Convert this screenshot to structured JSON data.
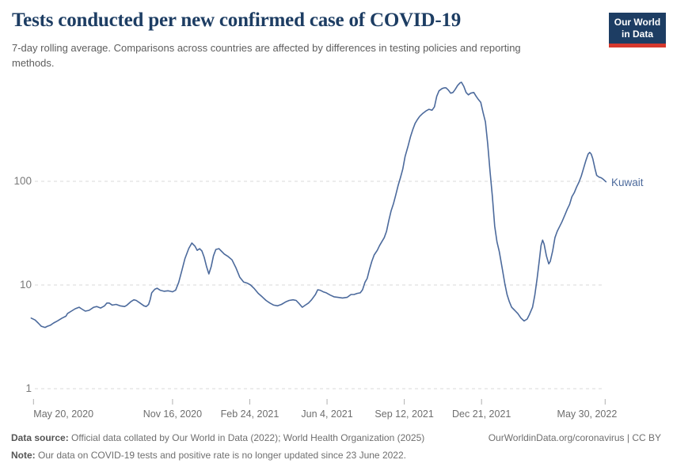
{
  "header": {
    "title": "Tests conducted per new confirmed case of COVID-19",
    "subtitle": "7-day rolling average. Comparisons across countries are affected by differences in testing policies and reporting methods.",
    "logo": {
      "line1": "Our World",
      "line2": "in Data"
    }
  },
  "colors": {
    "title_navy": "#1d3d63",
    "logo_navy": "#1d3d63",
    "logo_red": "#d5382d",
    "series_blue": "#4C6A9C",
    "grid_gray": "#d8d8d8",
    "tick_gray": "#b0b0b0"
  },
  "chart_data": {
    "type": "line",
    "title": "Tests conducted per new confirmed case of COVID-19",
    "y_scale": "log",
    "grid": "horizontal-dashed",
    "y_ticks": [
      {
        "label": "1",
        "value": 1
      },
      {
        "label": "10",
        "value": 10
      },
      {
        "label": "100",
        "value": 100
      }
    ],
    "x_ticks": [
      {
        "label": "May 20, 2020",
        "day": 0,
        "align": "left"
      },
      {
        "label": "Nov 16, 2020",
        "day": 180,
        "align": "center"
      },
      {
        "label": "Feb 24, 2021",
        "day": 280,
        "align": "center"
      },
      {
        "label": "Jun 4, 2021",
        "day": 380,
        "align": "center"
      },
      {
        "label": "Sep 12, 2021",
        "day": 480,
        "align": "center"
      },
      {
        "label": "Dec 21, 2021",
        "day": 580,
        "align": "center"
      },
      {
        "label": "May 30, 2022",
        "day": 740,
        "align": "right"
      }
    ],
    "x_domain_days": [
      -3,
      741
    ],
    "x_day0_date": "May 20, 2020",
    "y_domain": [
      1,
      1000
    ],
    "series": [
      {
        "name": "Kuwait",
        "color": "#4C6A9C",
        "points": [
          [
            -3,
            4.8
          ],
          [
            2,
            4.6
          ],
          [
            6,
            4.3
          ],
          [
            10,
            4.0
          ],
          [
            15,
            3.9
          ],
          [
            18,
            4.0
          ],
          [
            22,
            4.1
          ],
          [
            26,
            4.3
          ],
          [
            31,
            4.5
          ],
          [
            37,
            4.8
          ],
          [
            42,
            5.0
          ],
          [
            44,
            5.3
          ],
          [
            49,
            5.6
          ],
          [
            54,
            5.9
          ],
          [
            59,
            6.1
          ],
          [
            62,
            5.9
          ],
          [
            67,
            5.6
          ],
          [
            72,
            5.7
          ],
          [
            78,
            6.1
          ],
          [
            82,
            6.2
          ],
          [
            87,
            6.0
          ],
          [
            92,
            6.3
          ],
          [
            95,
            6.7
          ],
          [
            98,
            6.7
          ],
          [
            102,
            6.4
          ],
          [
            107,
            6.5
          ],
          [
            112,
            6.3
          ],
          [
            118,
            6.2
          ],
          [
            121,
            6.4
          ],
          [
            126,
            6.9
          ],
          [
            130,
            7.2
          ],
          [
            133,
            7.1
          ],
          [
            138,
            6.7
          ],
          [
            143,
            6.3
          ],
          [
            146,
            6.2
          ],
          [
            149,
            6.5
          ],
          [
            151,
            7.2
          ],
          [
            153,
            8.4
          ],
          [
            157,
            9.1
          ],
          [
            160,
            9.3
          ],
          [
            164,
            8.9
          ],
          [
            169,
            8.7
          ],
          [
            174,
            8.8
          ],
          [
            177,
            8.7
          ],
          [
            180,
            8.6
          ],
          [
            184,
            8.9
          ],
          [
            188,
            10.6
          ],
          [
            192,
            13.7
          ],
          [
            196,
            17.9
          ],
          [
            201,
            22.5
          ],
          [
            205,
            25.4
          ],
          [
            209,
            23.7
          ],
          [
            212,
            21.6
          ],
          [
            215,
            22.4
          ],
          [
            218,
            21.3
          ],
          [
            221,
            18.5
          ],
          [
            224,
            15.0
          ],
          [
            227,
            12.8
          ],
          [
            230,
            15.0
          ],
          [
            233,
            19.1
          ],
          [
            236,
            22.0
          ],
          [
            240,
            22.4
          ],
          [
            243,
            21.3
          ],
          [
            247,
            19.9
          ],
          [
            252,
            18.8
          ],
          [
            257,
            17.5
          ],
          [
            262,
            14.7
          ],
          [
            267,
            11.9
          ],
          [
            272,
            10.7
          ],
          [
            277,
            10.4
          ],
          [
            281,
            10.0
          ],
          [
            286,
            9.2
          ],
          [
            291,
            8.3
          ],
          [
            296,
            7.7
          ],
          [
            301,
            7.1
          ],
          [
            306,
            6.7
          ],
          [
            311,
            6.4
          ],
          [
            316,
            6.3
          ],
          [
            321,
            6.5
          ],
          [
            327,
            6.9
          ],
          [
            331,
            7.1
          ],
          [
            336,
            7.2
          ],
          [
            340,
            7.1
          ],
          [
            344,
            6.6
          ],
          [
            348,
            6.1
          ],
          [
            352,
            6.4
          ],
          [
            356,
            6.7
          ],
          [
            360,
            7.2
          ],
          [
            365,
            8.1
          ],
          [
            368,
            9.0
          ],
          [
            371,
            8.9
          ],
          [
            375,
            8.6
          ],
          [
            379,
            8.4
          ],
          [
            384,
            8.0
          ],
          [
            389,
            7.7
          ],
          [
            394,
            7.6
          ],
          [
            400,
            7.5
          ],
          [
            406,
            7.6
          ],
          [
            411,
            8.1
          ],
          [
            415,
            8.1
          ],
          [
            419,
            8.3
          ],
          [
            423,
            8.4
          ],
          [
            426,
            9.0
          ],
          [
            429,
            10.6
          ],
          [
            432,
            11.6
          ],
          [
            435,
            14.2
          ],
          [
            438,
            16.9
          ],
          [
            441,
            19.5
          ],
          [
            445,
            21.6
          ],
          [
            448,
            24.0
          ],
          [
            451,
            26.2
          ],
          [
            454,
            28.6
          ],
          [
            457,
            33
          ],
          [
            460,
            42
          ],
          [
            463,
            52
          ],
          [
            466,
            61
          ],
          [
            469,
            74
          ],
          [
            472,
            91
          ],
          [
            475,
            108
          ],
          [
            478,
            131
          ],
          [
            481,
            173
          ],
          [
            485,
            220
          ],
          [
            488,
            268
          ],
          [
            491,
            316
          ],
          [
            494,
            362
          ],
          [
            497,
            394
          ],
          [
            500,
            423
          ],
          [
            504,
            452
          ],
          [
            508,
            476
          ],
          [
            512,
            494
          ],
          [
            516,
            485
          ],
          [
            519,
            523
          ],
          [
            522,
            659
          ],
          [
            525,
            745
          ],
          [
            529,
            784
          ],
          [
            532,
            797
          ],
          [
            534,
            797
          ],
          [
            537,
            759
          ],
          [
            540,
            707
          ],
          [
            543,
            719
          ],
          [
            546,
            771
          ],
          [
            549,
            838
          ],
          [
            552,
            887
          ],
          [
            554,
            902
          ],
          [
            557,
            823
          ],
          [
            560,
            719
          ],
          [
            563,
            682
          ],
          [
            566,
            707
          ],
          [
            570,
            719
          ],
          [
            573,
            659
          ],
          [
            576,
            613
          ],
          [
            579,
            577
          ],
          [
            582,
            461
          ],
          [
            585,
            373
          ],
          [
            588,
            229
          ],
          [
            591,
            125
          ],
          [
            594,
            71
          ],
          [
            597,
            37
          ],
          [
            600,
            26
          ],
          [
            603,
            21
          ],
          [
            607,
            14.2
          ],
          [
            610,
            10.4
          ],
          [
            613,
            8.1
          ],
          [
            616,
            6.9
          ],
          [
            619,
            6.1
          ],
          [
            623,
            5.7
          ],
          [
            627,
            5.3
          ],
          [
            631,
            4.8
          ],
          [
            635,
            4.5
          ],
          [
            639,
            4.7
          ],
          [
            642,
            5.2
          ],
          [
            646,
            6.1
          ],
          [
            649,
            8.0
          ],
          [
            652,
            11.6
          ],
          [
            655,
            17.9
          ],
          [
            657,
            24
          ],
          [
            659,
            27.1
          ],
          [
            661,
            24.8
          ],
          [
            664,
            19.1
          ],
          [
            667,
            16
          ],
          [
            669,
            16.9
          ],
          [
            672,
            21.3
          ],
          [
            675,
            28.6
          ],
          [
            678,
            33
          ],
          [
            681,
            36.5
          ],
          [
            684,
            40.6
          ],
          [
            688,
            47.6
          ],
          [
            691,
            53.9
          ],
          [
            694,
            59.9
          ],
          [
            697,
            71
          ],
          [
            700,
            77.7
          ],
          [
            703,
            88
          ],
          [
            706,
            97.5
          ],
          [
            709,
            112
          ],
          [
            712,
            133
          ],
          [
            715,
            158
          ],
          [
            718,
            183
          ],
          [
            720,
            190
          ],
          [
            722,
            183
          ],
          [
            724,
            165
          ],
          [
            727,
            131
          ],
          [
            729,
            114
          ],
          [
            732,
            110
          ],
          [
            735,
            108
          ],
          [
            738,
            104
          ],
          [
            741,
            99
          ]
        ]
      }
    ]
  },
  "footer": {
    "source_label": "Data source:",
    "source_text": "Official data collated by Our World in Data (2022); World Health Organization (2025)",
    "link_text": "OurWorldinData.org/coronavirus | CC BY",
    "note_label": "Note:",
    "note_text": "Our data on COVID-19 tests and positive rate is no longer updated since 23 June 2022."
  }
}
